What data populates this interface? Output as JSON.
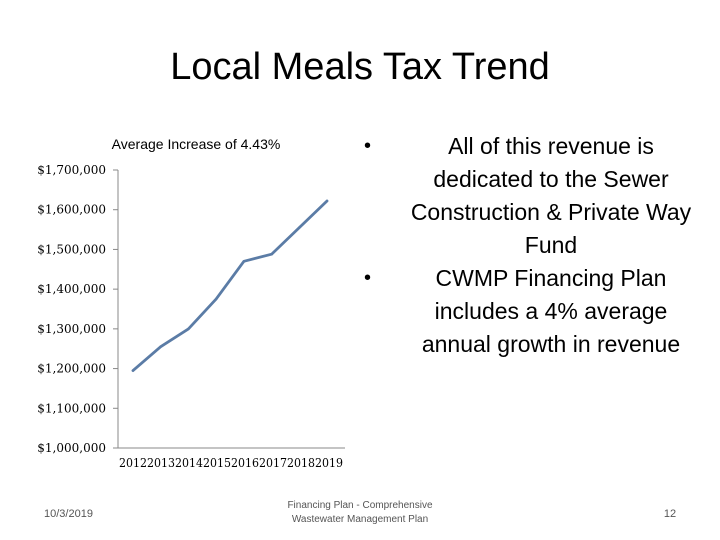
{
  "slide": {
    "title": "Local Meals Tax Trend",
    "bullets": [
      "All of this revenue is dedicated to the Sewer Construction & Private Way Fund",
      "CWMP Financing Plan includes a 4% average annual growth in revenue"
    ],
    "bullet_glyph": "•"
  },
  "footer": {
    "date": "10/3/2019",
    "center_line1": "Financing Plan - Comprehensive",
    "center_line2": "Wastewater Management Plan",
    "page": "12"
  },
  "chart_data": {
    "type": "line",
    "title": "Average Increase of 4.43%",
    "categories": [
      "2012",
      "2013",
      "2014",
      "2015",
      "2016",
      "2017",
      "2018",
      "2019"
    ],
    "series": [
      {
        "values": [
          1195000,
          1255000,
          1300000,
          1375000,
          1470000,
          1488000,
          1555000,
          1622000
        ]
      }
    ],
    "ylim": [
      1000000,
      1700000
    ],
    "yticks": [
      1000000,
      1100000,
      1200000,
      1300000,
      1400000,
      1500000,
      1600000,
      1700000
    ],
    "ytick_labels": [
      "$1,000,000",
      "$1,100,000",
      "$1,200,000",
      "$1,300,000",
      "$1,400,000",
      "$1,500,000",
      "$1,600,000",
      "$1,700,000"
    ],
    "grid": false,
    "legend": "none",
    "line_color": "#5b7ca6",
    "axis_color": "#888888"
  }
}
